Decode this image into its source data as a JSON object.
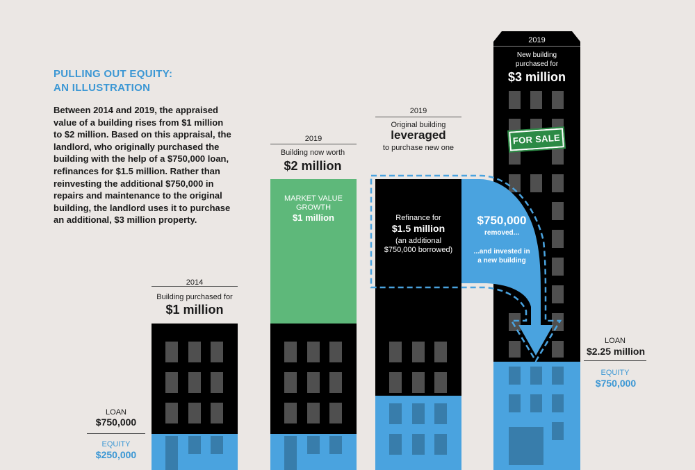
{
  "intro": {
    "title_line1": "PULLING OUT EQUITY:",
    "title_line2": "AN ILLUSTRATION",
    "body": "Between 2014 and 2019, the appraised value of a building rises from $1 million to $2 million. Based on this appraisal, the landlord, who originally purchased the building with the help of a $750,000 loan, refinances for $1.5 million. Rather than reinvesting the additional $750,000 in repairs and maintenance to the original building, the landlord uses it to purchase an additional, $3 million property."
  },
  "b1": {
    "year": "2014",
    "caption": "Building purchased for",
    "value": "$1 million",
    "loan_label": "LOAN",
    "loan_value": "$750,000",
    "equity_label": "EQUITY",
    "equity_value": "$250,000"
  },
  "b2": {
    "year": "2019",
    "caption": "Building now worth",
    "value": "$2 million",
    "growth_label_1": "MARKET VALUE",
    "growth_label_2": "GROWTH",
    "growth_value": "$1 million"
  },
  "b3": {
    "year": "2019",
    "caption_1": "Original building",
    "caption_big": "leveraged",
    "caption_2": "to purchase new one",
    "refi_label": "Refinance for",
    "refi_value": "$1.5 million",
    "refi_note_1": "(an additional",
    "refi_note_2": "$750,000 borrowed)"
  },
  "transfer": {
    "amount": "$750,000",
    "removed": "removed...",
    "invested_1": "...and invested in",
    "invested_2": "a new building"
  },
  "b4": {
    "year": "2019",
    "caption_1": "New building",
    "caption_2": "purchased for",
    "value": "$3 million",
    "stamp": "FOR SALE",
    "loan_label": "LOAN",
    "loan_value": "$2.25 million",
    "equity_label": "EQUITY",
    "equity_value": "$750,000"
  },
  "colors": {
    "background": "#ebe7e4",
    "building": "#000000",
    "window": "#4f4f4f",
    "equity": "#4aa3df",
    "growth": "#5eb87a",
    "accent_text": "#3b97d4",
    "stamp": "#2c8a45"
  }
}
